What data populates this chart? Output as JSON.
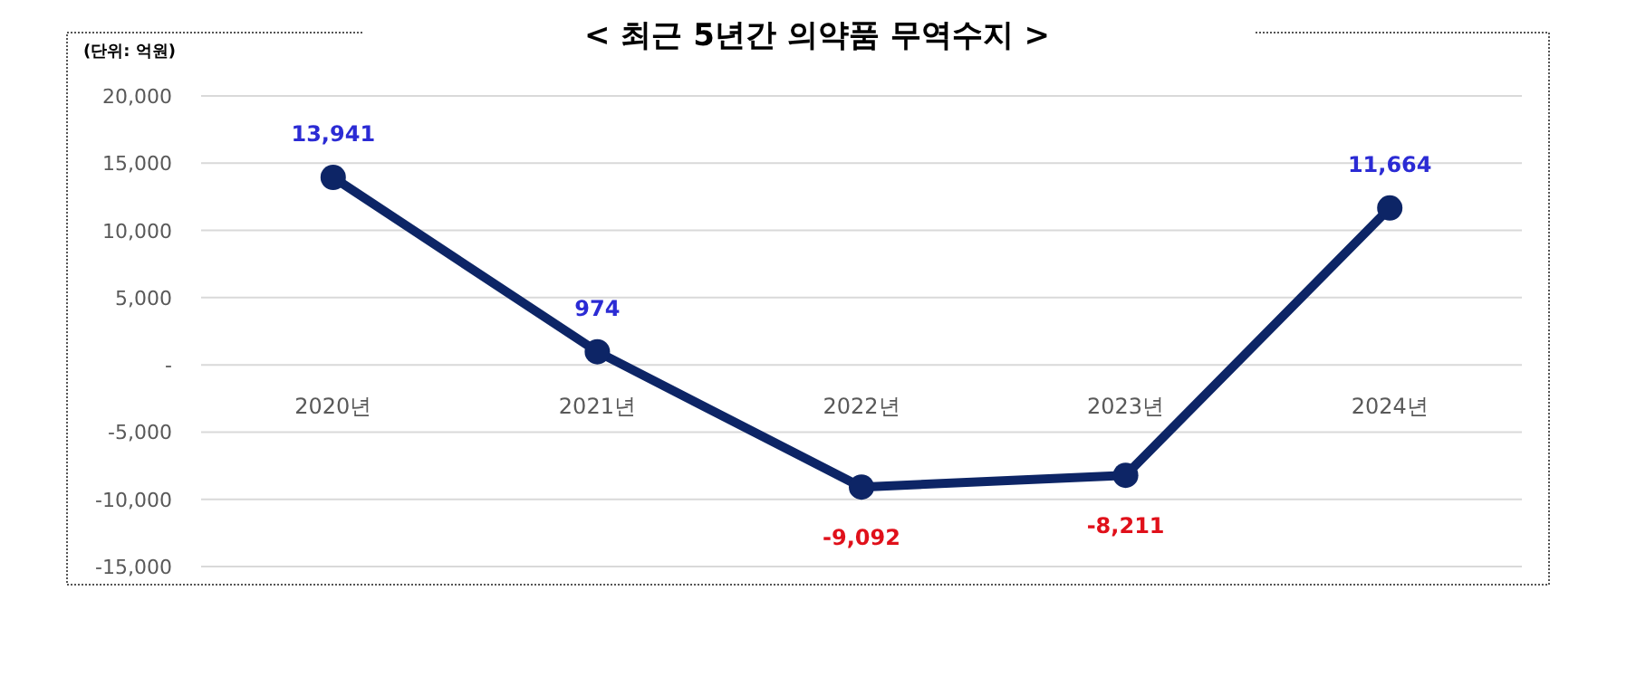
{
  "chart_data": {
    "type": "line",
    "title": "< 최근 5년간 의약품 무역수지 >",
    "ylabel": "(단위: 억원)",
    "categories": [
      "2020년",
      "2021년",
      "2022년",
      "2023년",
      "2024년"
    ],
    "series": [
      {
        "color": "#0d2566",
        "values": [
          13941,
          974,
          -9092,
          -8211,
          11664
        ]
      }
    ],
    "value_labels": [
      "13,941",
      "974",
      "-9,092",
      "-8,211",
      "11,664"
    ],
    "ylim": [
      -15000,
      20000
    ],
    "yticks": [
      {
        "value": -15000,
        "label": "-15,000"
      },
      {
        "value": -10000,
        "label": "-10,000"
      },
      {
        "value": -5000,
        "label": "-5,000"
      },
      {
        "value": 0,
        "label": "-"
      },
      {
        "value": 5000,
        "label": "5,000"
      },
      {
        "value": 10000,
        "label": "10,000"
      },
      {
        "value": 15000,
        "label": "15,000"
      },
      {
        "value": 20000,
        "label": "20,000"
      }
    ],
    "grid": "y",
    "marker": "circle",
    "line_style": "solid"
  }
}
